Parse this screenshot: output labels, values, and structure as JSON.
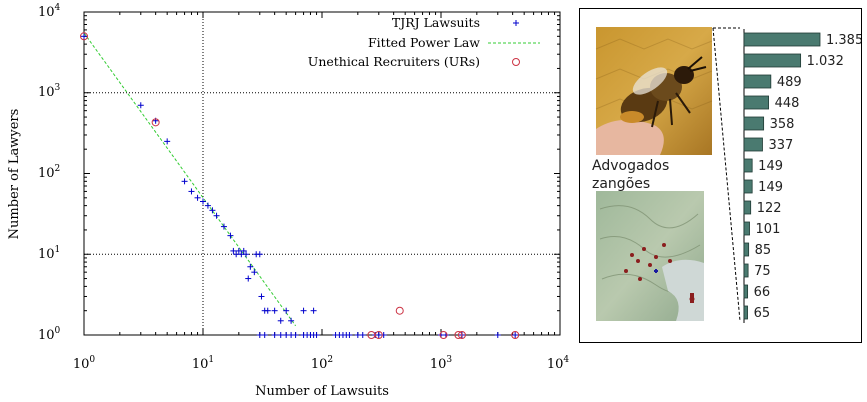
{
  "chart_data": [
    {
      "type": "scatter",
      "xscale": "log",
      "yscale": "log",
      "xlabel": "Number of Lawsuits",
      "ylabel": "Number of Lawyers",
      "xlim": [
        1,
        10000
      ],
      "ylim": [
        1,
        10000
      ],
      "x_ticks": [
        {
          "base": "10",
          "exp": "0"
        },
        {
          "base": "10",
          "exp": "1"
        },
        {
          "base": "10",
          "exp": "2"
        },
        {
          "base": "10",
          "exp": "3"
        },
        {
          "base": "10",
          "exp": "4"
        }
      ],
      "y_ticks": [
        {
          "base": "10",
          "exp": "0"
        },
        {
          "base": "10",
          "exp": "1"
        },
        {
          "base": "10",
          "exp": "2"
        },
        {
          "base": "10",
          "exp": "3"
        },
        {
          "base": "10",
          "exp": "4"
        }
      ],
      "grid": "dotted lines at 10 on both axes and at 10^3 on y",
      "legend_position": "top-right",
      "legend": [
        "TJRJ Lawsuits",
        "Fitted Power Law",
        "Unethical Recruiters (URs)"
      ],
      "series": [
        {
          "name": "TJRJ Lawsuits",
          "marker": "plus",
          "color": "#0000cc",
          "points": [
            [
              1,
              5000
            ],
            [
              3,
              700
            ],
            [
              4,
              450
            ],
            [
              5,
              250
            ],
            [
              7,
              80
            ],
            [
              8,
              60
            ],
            [
              9,
              50
            ],
            [
              10,
              45
            ],
            [
              11,
              40
            ],
            [
              12,
              35
            ],
            [
              13,
              30
            ],
            [
              15,
              22
            ],
            [
              17,
              17
            ],
            [
              18,
              11
            ],
            [
              19,
              10
            ],
            [
              20,
              11
            ],
            [
              21,
              10
            ],
            [
              22,
              11
            ],
            [
              23,
              10
            ],
            [
              24,
              5
            ],
            [
              25,
              7
            ],
            [
              27,
              6
            ],
            [
              28,
              10
            ],
            [
              30,
              10
            ],
            [
              31,
              3
            ],
            [
              33,
              2
            ],
            [
              35,
              2
            ],
            [
              40,
              2
            ],
            [
              45,
              1.5
            ],
            [
              50,
              2
            ],
            [
              55,
              1.5
            ],
            [
              70,
              2
            ],
            [
              85,
              2
            ],
            [
              30,
              1
            ],
            [
              33,
              1
            ],
            [
              40,
              1
            ],
            [
              45,
              1
            ],
            [
              50,
              1
            ],
            [
              55,
              1
            ],
            [
              60,
              1
            ],
            [
              70,
              1
            ],
            [
              75,
              1
            ],
            [
              80,
              1
            ],
            [
              85,
              1
            ],
            [
              90,
              1
            ],
            [
              130,
              1
            ],
            [
              140,
              1
            ],
            [
              150,
              1
            ],
            [
              160,
              1
            ],
            [
              170,
              1
            ],
            [
              200,
              1
            ],
            [
              220,
              1
            ],
            [
              280,
              1
            ],
            [
              300,
              1
            ],
            [
              330,
              1
            ],
            [
              1000,
              1
            ],
            [
              1100,
              1
            ],
            [
              1500,
              1
            ],
            [
              3000,
              1
            ],
            [
              4200,
              1
            ]
          ]
        },
        {
          "name": "Fitted Power Law",
          "type": "line",
          "color": "#33cc33",
          "dash": "dashed",
          "points": [
            [
              1,
              5500
            ],
            [
              60,
              1.3
            ]
          ]
        },
        {
          "name": "Unethical Recruiters (URs)",
          "marker": "circle",
          "color": "#cc3344",
          "points": [
            [
              1,
              5000
            ],
            [
              4,
              430
            ],
            [
              450,
              2
            ],
            [
              260,
              1
            ],
            [
              300,
              1
            ],
            [
              1050,
              1
            ],
            [
              1400,
              1
            ],
            [
              1500,
              1
            ],
            [
              4200,
              1
            ]
          ]
        }
      ]
    },
    {
      "type": "bar",
      "orientation": "horizontal",
      "values": [
        1385,
        1032,
        489,
        448,
        358,
        337,
        149,
        149,
        122,
        101,
        85,
        75,
        66,
        65
      ],
      "value_labels": [
        "1.385",
        "1.032",
        "489",
        "448",
        "358",
        "337",
        "149",
        "149",
        "122",
        "101",
        "85",
        "75",
        "66",
        "65"
      ],
      "bar_color": "#4a7a70",
      "xlim": [
        0,
        1385
      ]
    }
  ],
  "inset": {
    "caption_line1": "Advogados",
    "caption_line2": "zangões",
    "photo": "bee-photo",
    "map": "map-thumbnail"
  }
}
